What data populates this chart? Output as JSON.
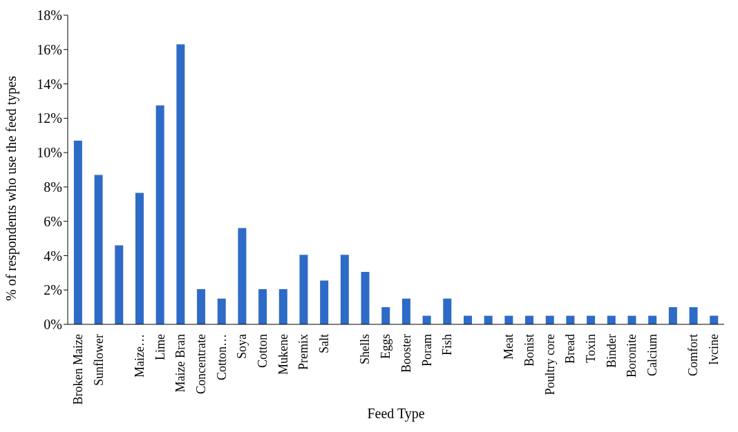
{
  "chart_data": {
    "type": "bar",
    "xlabel": "Feed Type",
    "ylabel": "% of respondents who use the feed types",
    "categories": [
      "Broken Maize",
      "Sunflower",
      null,
      "Maize…",
      "Lime",
      "Maize Bran",
      "Concentrate",
      "Cotton…",
      "Soya",
      "Cotton",
      "Mukene",
      "Premix",
      "Salt",
      null,
      "Shells",
      "Eggs",
      "Booster",
      "Poram",
      "Fish",
      null,
      null,
      "Meat",
      "Bonist",
      "Poultry core",
      "Bread",
      "Toxin",
      "Binder",
      "Boronite",
      "Calcium",
      null,
      "Comfort",
      "Ivcine"
    ],
    "values": [
      10.7,
      8.7,
      4.6,
      7.65,
      12.75,
      16.3,
      2.05,
      1.5,
      5.6,
      2.05,
      2.05,
      4.05,
      2.55,
      4.05,
      3.05,
      1.0,
      1.5,
      0.5,
      1.5,
      0.5,
      0.5,
      0.5,
      0.5,
      0.5,
      0.5,
      0.5,
      0.5,
      0.5,
      0.5,
      1.0,
      1.0,
      0.5
    ],
    "color": "#2e6bc6",
    "ylim": [
      0,
      18
    ],
    "yticks": [
      {
        "value": 0,
        "label": "0%"
      },
      {
        "value": 2,
        "label": "2%"
      },
      {
        "value": 4,
        "label": "4%"
      },
      {
        "value": 6,
        "label": "6%"
      },
      {
        "value": 8,
        "label": "8%"
      },
      {
        "value": 10,
        "label": "10%"
      },
      {
        "value": 12,
        "label": "12%"
      },
      {
        "value": 14,
        "label": "14%"
      },
      {
        "value": 16,
        "label": "16%"
      },
      {
        "value": 18,
        "label": "18%"
      }
    ],
    "grid": false,
    "legend": false
  }
}
